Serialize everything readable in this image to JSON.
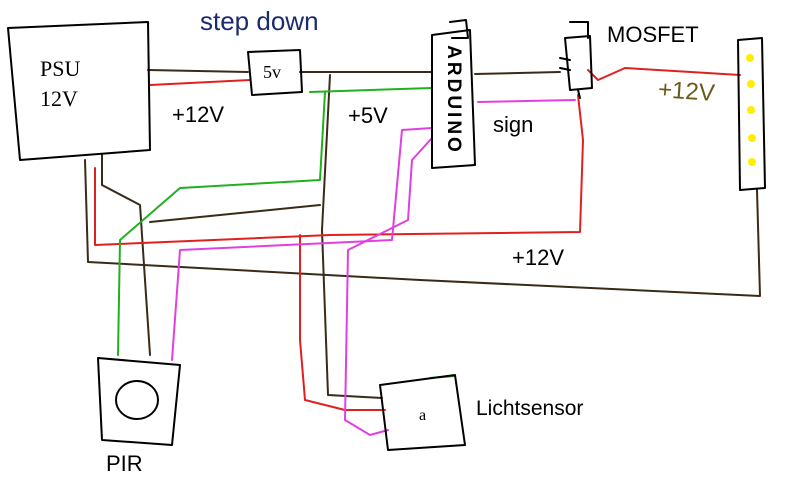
{
  "labels": {
    "step_down": "step down",
    "mosfet": "MOSFET",
    "psu_line1": "PSU",
    "psu_line2": "12V",
    "module_5v": "5v",
    "plus12v_left": "+12V",
    "plus5v": "+5V",
    "sign": "sign",
    "plus12v_strip": "+12V",
    "plus12v_bottom": "+12V",
    "arduino": "ARDUINO",
    "pir": "PIR",
    "lichtsensor": "Lichtsensor",
    "sensor_mark": "a"
  },
  "colors": {
    "outline": "#000000",
    "wire_12v": "#e02020",
    "wire_5v": "#20b020",
    "wire_signal": "#e040e0",
    "wire_ground": "#3a2a18",
    "led_dot": "#ffee00",
    "step_down_text": "#1c2a6e"
  }
}
